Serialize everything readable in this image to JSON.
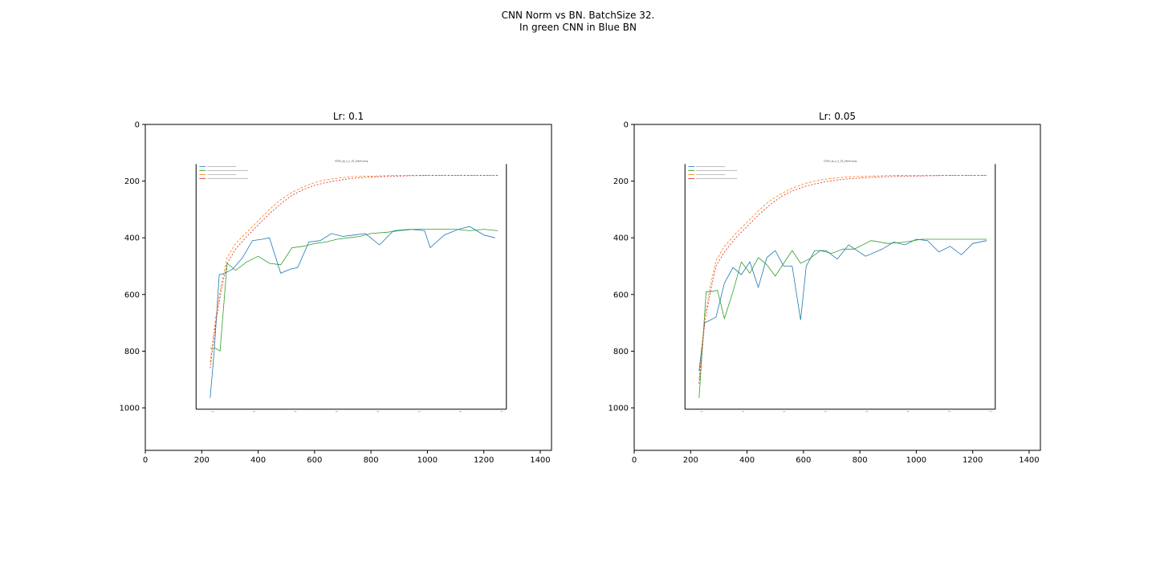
{
  "figure": {
    "title_line1": "CNN Norm vs BN. BatchSize 32.",
    "title_line2": "In green CNN in Blue BN"
  },
  "chart_data": [
    {
      "type": "line",
      "title": "Lr: 0.1",
      "xlim": [
        0,
        1440
      ],
      "ylim": [
        1150,
        0
      ],
      "xticks": [
        0,
        200,
        400,
        600,
        800,
        1000,
        1200,
        1400
      ],
      "yticks": [
        0,
        200,
        400,
        600,
        800,
        1000
      ],
      "image_extent_x": [
        165,
        1300
      ],
      "image_extent_y": [
        140,
        1020
      ],
      "inner_plot": {
        "title": "CSSS_sp_s_o_32_batch.png",
        "axes_x": [
          180,
          1280
        ],
        "axes_y": [
          140,
          1005
        ],
        "series": [
          {
            "color": "#1f77b4",
            "dash": "",
            "x": [
              230,
              245,
              262,
              283,
              310,
              345,
              380,
              415,
              440,
              480,
              515,
              540,
              580,
              620,
              660,
              700,
              740,
              780,
              830,
              880,
              940,
              990,
              1010,
              1060,
              1110,
              1150,
              1200,
              1240
            ],
            "y": [
              965,
              790,
              530,
              525,
              510,
              470,
              410,
              405,
              400,
              525,
              510,
              505,
              415,
              410,
              385,
              395,
              390,
              385,
              425,
              375,
              370,
              375,
              435,
              390,
              370,
              360,
              390,
              400
            ]
          },
          {
            "color": "#2ca02c",
            "dash": "",
            "x": [
              230,
              250,
              265,
              290,
              320,
              360,
              400,
              440,
              480,
              520,
              560,
              600,
              640,
              680,
              720,
              760,
              800,
              860,
              900,
              950,
              1000,
              1050,
              1100,
              1150,
              1200,
              1250
            ],
            "y": [
              790,
              790,
              800,
              490,
              515,
              485,
              465,
              490,
              495,
              435,
              430,
              420,
              415,
              405,
              400,
              395,
              385,
              380,
              375,
              370,
              370,
              370,
              370,
              375,
              370,
              375
            ]
          },
          {
            "color": "#ff7f0e",
            "dash": "3,2",
            "x": [
              230,
              250,
              270,
              290,
              320,
              360,
              400,
              440,
              480,
              520,
              560,
              600,
              640,
              680,
              720,
              760,
              820,
              880,
              940,
              1000,
              1060,
              1120,
              1180,
              1250
            ],
            "y": [
              840,
              680,
              560,
              470,
              420,
              380,
              340,
              300,
              265,
              240,
              220,
              205,
              195,
              190,
              185,
              183,
              182,
              180,
              180,
              180,
              180,
              180,
              180,
              180
            ]
          },
          {
            "color": "#d62728",
            "dash": "2,2",
            "x": [
              230,
              250,
              270,
              290,
              320,
              360,
              400,
              440,
              480,
              520,
              560,
              600,
              640,
              680,
              720,
              760,
              820,
              880,
              940,
              1000,
              1060,
              1120,
              1180,
              1250
            ],
            "y": [
              860,
              700,
              580,
              490,
              440,
              395,
              355,
              315,
              280,
              250,
              230,
              215,
              205,
              198,
              192,
              188,
              185,
              183,
              181,
              180,
              180,
              180,
              180,
              180
            ]
          }
        ]
      }
    },
    {
      "type": "line",
      "title": "Lr: 0.05",
      "xlim": [
        0,
        1440
      ],
      "ylim": [
        1150,
        0
      ],
      "xticks": [
        0,
        200,
        400,
        600,
        800,
        1000,
        1200,
        1400
      ],
      "yticks": [
        0,
        200,
        400,
        600,
        800,
        1000
      ],
      "image_extent_x": [
        165,
        1300
      ],
      "image_extent_y": [
        140,
        1020
      ],
      "inner_plot": {
        "title": "CSSS_sp_s_o_32_batch.png",
        "axes_x": [
          180,
          1280
        ],
        "axes_y": [
          140,
          1005
        ],
        "series": [
          {
            "color": "#1f77b4",
            "dash": "",
            "x": [
              230,
              250,
              270,
              290,
              320,
              350,
              380,
              410,
              440,
              470,
              500,
              530,
              560,
              590,
              610,
              640,
              680,
              720,
              760,
              820,
              880,
              920,
              960,
              1000,
              1040,
              1080,
              1120,
              1160,
              1200,
              1250
            ],
            "y": [
              870,
              700,
              690,
              680,
              560,
              505,
              530,
              485,
              575,
              470,
              445,
              500,
              500,
              690,
              500,
              445,
              445,
              475,
              425,
              465,
              440,
              415,
              425,
              405,
              410,
              450,
              430,
              460,
              420,
              410
            ]
          },
          {
            "color": "#2ca02c",
            "dash": "",
            "x": [
              230,
              255,
              275,
              295,
              320,
              350,
              380,
              410,
              440,
              470,
              500,
              530,
              560,
              590,
              620,
              660,
              700,
              740,
              780,
              840,
              900,
              960,
              1020,
              1080,
              1140,
              1200,
              1250
            ],
            "y": [
              965,
              590,
              590,
              585,
              685,
              590,
              485,
              525,
              470,
              495,
              535,
              490,
              445,
              490,
              475,
              445,
              455,
              440,
              440,
              410,
              420,
              415,
              405,
              405,
              405,
              405,
              405
            ]
          },
          {
            "color": "#ff7f0e",
            "dash": "3,2",
            "x": [
              230,
              250,
              270,
              290,
              320,
              360,
              400,
              440,
              480,
              520,
              560,
              600,
              640,
              680,
              720,
              760,
              820,
              880,
              940,
              1000,
              1060,
              1120,
              1180,
              1250
            ],
            "y": [
              900,
              680,
              570,
              480,
              430,
              385,
              345,
              305,
              270,
              245,
              225,
              210,
              200,
              193,
              188,
              185,
              183,
              181,
              180,
              180,
              180,
              180,
              180,
              180
            ]
          },
          {
            "color": "#d62728",
            "dash": "2,2",
            "x": [
              230,
              250,
              270,
              290,
              320,
              360,
              400,
              440,
              480,
              520,
              560,
              600,
              640,
              680,
              720,
              760,
              820,
              880,
              940,
              1000,
              1060,
              1120,
              1180,
              1250
            ],
            "y": [
              915,
              700,
              590,
              500,
              450,
              400,
              360,
              320,
              285,
              255,
              235,
              220,
              210,
              202,
              196,
              192,
              188,
              185,
              183,
              182,
              181,
              180,
              180,
              180
            ]
          }
        ]
      }
    }
  ]
}
